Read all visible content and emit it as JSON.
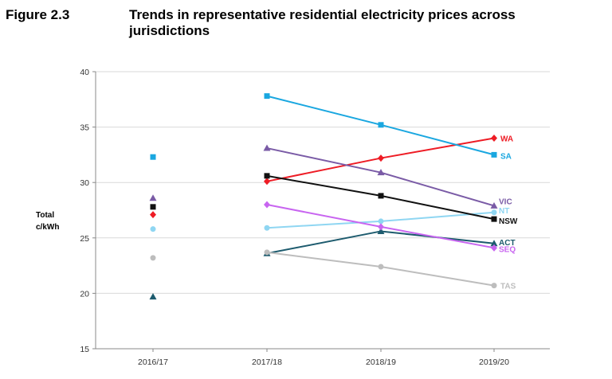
{
  "figure": {
    "label": "Figure 2.3",
    "title": "Trends in representative residential electricity prices across jurisdictions"
  },
  "chart_data": {
    "type": "line",
    "title": "Trends in representative residential electricity prices across jurisdictions",
    "xlabel": "",
    "ylabel_lines": [
      "Total",
      "c/kWh"
    ],
    "categories": [
      "2016/17",
      "2017/18",
      "2018/19",
      "2019/20"
    ],
    "ylim": [
      15,
      40
    ],
    "yticks": [
      15,
      20,
      25,
      30,
      35,
      40
    ],
    "grid": "horizontal",
    "series": [
      {
        "name": "WA",
        "color": "#ee1c25",
        "marker": "diamond",
        "values": [
          27.1,
          30.1,
          32.2,
          34.0
        ]
      },
      {
        "name": "SA",
        "color": "#1aa7e0",
        "marker": "square",
        "values": [
          32.3,
          37.8,
          35.2,
          32.5
        ]
      },
      {
        "name": "VIC",
        "color": "#7a5ba6",
        "marker": "triangle",
        "values": [
          28.6,
          33.1,
          30.9,
          27.9
        ]
      },
      {
        "name": "NT",
        "color": "#8fd6f2",
        "marker": "circle",
        "values": [
          25.8,
          25.9,
          26.5,
          27.3
        ]
      },
      {
        "name": "NSW",
        "color": "#111111",
        "marker": "square",
        "values": [
          27.8,
          30.6,
          28.8,
          26.7
        ]
      },
      {
        "name": "ACT",
        "color": "#1d5b6e",
        "marker": "triangle",
        "values": [
          19.7,
          23.6,
          25.6,
          24.5
        ]
      },
      {
        "name": "SEQ",
        "color": "#c865f0",
        "marker": "diamond",
        "values": [
          null,
          28.0,
          26.0,
          24.1
        ]
      },
      {
        "name": "TAS",
        "color": "#bdbdbd",
        "marker": "circle",
        "values": [
          23.2,
          23.7,
          22.4,
          20.7
        ]
      }
    ]
  }
}
